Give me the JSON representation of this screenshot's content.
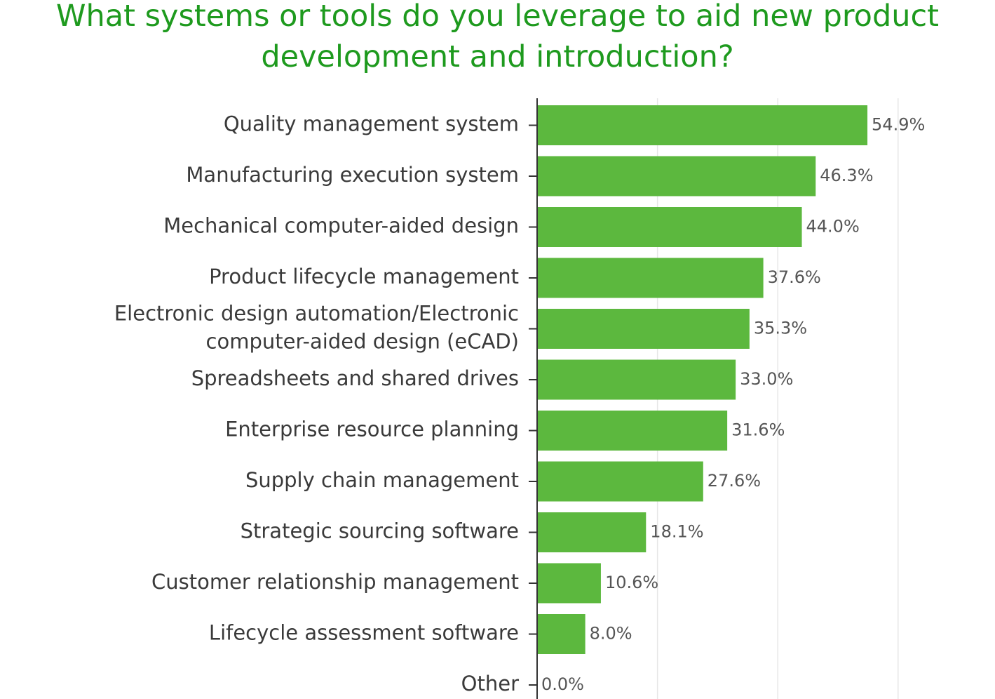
{
  "chart_data": {
    "type": "bar",
    "orientation": "horizontal",
    "title": "What systems or tools do you leverage to aid new product development and introduction?",
    "categories": [
      "Quality management system",
      "Manufacturing execution system",
      "Mechanical computer-aided design",
      "Product lifecycle management",
      "Electronic design automation/Electronic computer-aided design (eCAD)",
      "Spreadsheets and shared drives",
      "Enterprise resource planning",
      "Supply chain management",
      "Strategic sourcing software",
      "Customer relationship management",
      "Lifecycle assessment software",
      "Other"
    ],
    "values": [
      54.9,
      46.3,
      44.0,
      37.6,
      35.3,
      33.0,
      31.6,
      27.6,
      18.1,
      10.6,
      8.0,
      0.0
    ],
    "value_labels": [
      "54.9%",
      "46.3%",
      "44.0%",
      "37.6%",
      "35.3%",
      "33.0%",
      "31.6%",
      "27.6%",
      "18.1%",
      "10.6%",
      "8.0%",
      "0.0%"
    ],
    "xlim": [
      0,
      75
    ],
    "grid": true,
    "colors": {
      "bar": "#5cb83e",
      "title": "#1e9a1e",
      "grid": "#e6e6e6",
      "axis": "#333333"
    }
  }
}
